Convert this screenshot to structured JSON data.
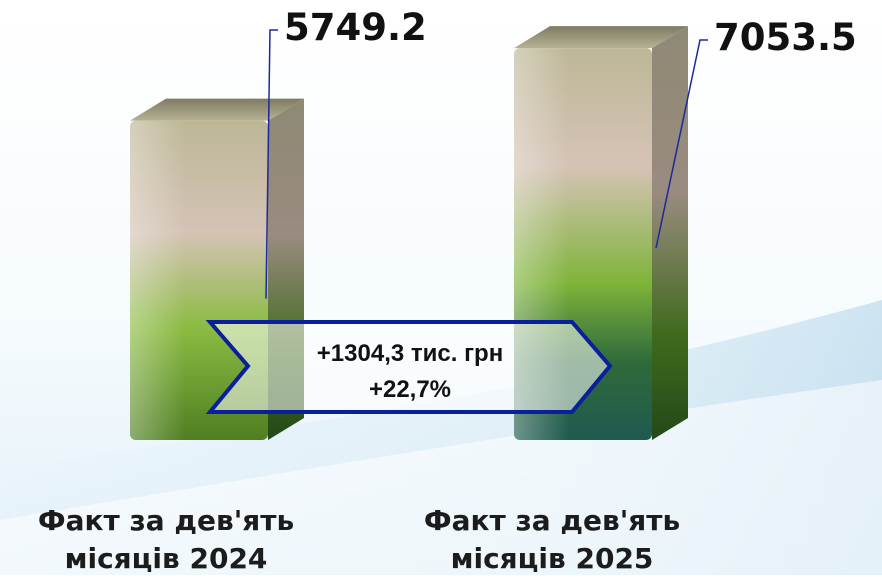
{
  "chart_data": {
    "type": "bar",
    "categories": [
      {
        "line1": "Факт за  дев'ять",
        "line2": "місяців 2024"
      },
      {
        "line1": "Факт за  дев'ять",
        "line2": "місяців 2025"
      }
    ],
    "values": [
      5749.2,
      7053.5
    ],
    "value_labels": [
      "5749.2",
      "7053.5"
    ],
    "difference": {
      "amount": "+1304,3 тис. грн",
      "percent": "+22,7%"
    },
    "title": "",
    "xlabel": "",
    "ylabel": "",
    "ylim": [
      0,
      7200
    ],
    "grid": false,
    "legend": "none"
  },
  "colors": {
    "bar_top": "#c9c2a6",
    "bar_mid": "#cdb9ad",
    "bar_green": "#6fa52e",
    "bar_dark_green": "#3d6a17",
    "bar_teal": "#1c5a52",
    "arrow_border": "#0a1f9a",
    "leader_line": "#1a2a9a"
  }
}
